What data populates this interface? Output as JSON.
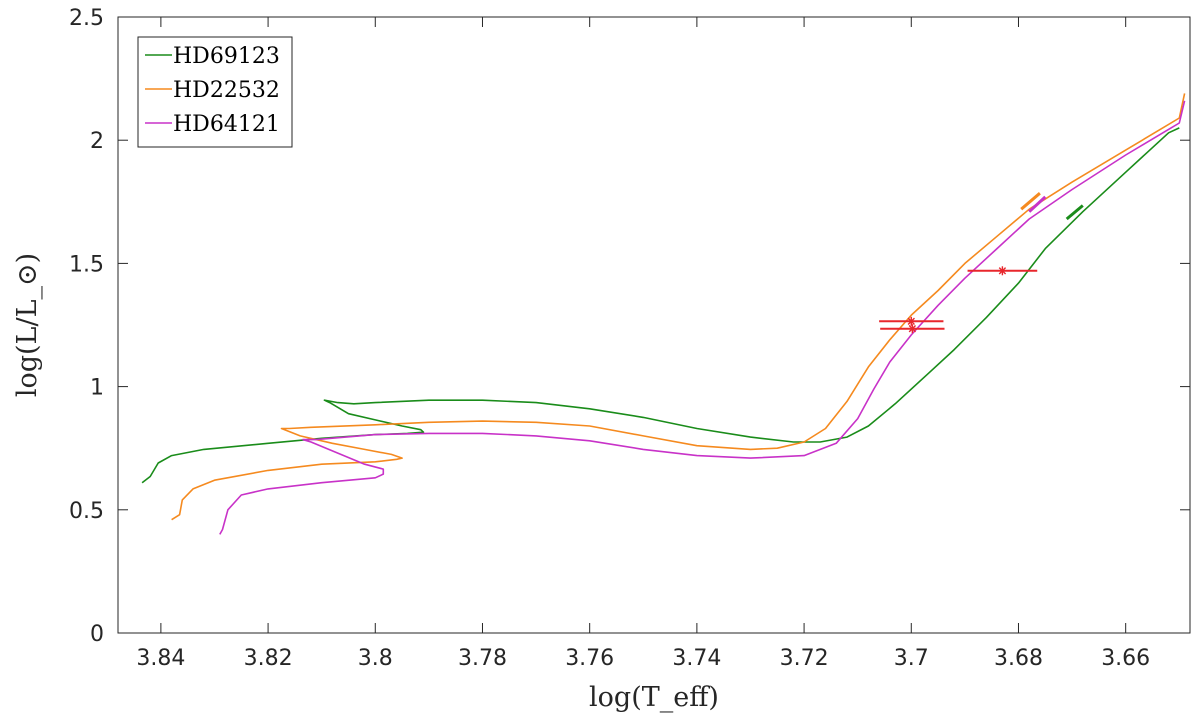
{
  "chart_data": {
    "type": "line",
    "xlabel": "log(T_eff)",
    "ylabel": "log(L/L_⊙)",
    "xlim": [
      3.648,
      3.848
    ],
    "x_reversed": true,
    "ylim": [
      0,
      2.5
    ],
    "xticks": [
      3.84,
      3.82,
      3.8,
      3.78,
      3.76,
      3.74,
      3.72,
      3.7,
      3.68,
      3.66
    ],
    "xtick_labels": [
      "3.84",
      "3.82",
      "3.8",
      "3.78",
      "3.76",
      "3.74",
      "3.72",
      "3.7",
      "3.68",
      "3.66"
    ],
    "yticks": [
      0,
      0.5,
      1,
      1.5,
      2,
      2.5
    ],
    "ytick_labels": [
      "0",
      "0.5",
      "1",
      "1.5",
      "2",
      "2.5"
    ],
    "grid": false,
    "legend_position": "top-left",
    "series": [
      {
        "name": "HD69123",
        "color": "#1a8c1a",
        "points": [
          [
            3.8435,
            0.61
          ],
          [
            3.842,
            0.635
          ],
          [
            3.8405,
            0.69
          ],
          [
            3.838,
            0.72
          ],
          [
            3.832,
            0.745
          ],
          [
            3.82,
            0.77
          ],
          [
            3.81,
            0.79
          ],
          [
            3.8,
            0.805
          ],
          [
            3.794,
            0.81
          ],
          [
            3.791,
            0.815
          ],
          [
            3.7915,
            0.825
          ],
          [
            3.795,
            0.84
          ],
          [
            3.8,
            0.865
          ],
          [
            3.805,
            0.89
          ],
          [
            3.8085,
            0.935
          ],
          [
            3.8095,
            0.945
          ],
          [
            3.807,
            0.935
          ],
          [
            3.804,
            0.93
          ],
          [
            3.8,
            0.935
          ],
          [
            3.79,
            0.945
          ],
          [
            3.78,
            0.945
          ],
          [
            3.77,
            0.935
          ],
          [
            3.76,
            0.91
          ],
          [
            3.75,
            0.875
          ],
          [
            3.74,
            0.83
          ],
          [
            3.73,
            0.795
          ],
          [
            3.722,
            0.775
          ],
          [
            3.717,
            0.775
          ],
          [
            3.712,
            0.795
          ],
          [
            3.708,
            0.84
          ],
          [
            3.703,
            0.93
          ],
          [
            3.697,
            1.05
          ],
          [
            3.692,
            1.15
          ],
          [
            3.686,
            1.28
          ],
          [
            3.68,
            1.42
          ],
          [
            3.675,
            1.56
          ],
          [
            3.668,
            1.71
          ],
          [
            3.66,
            1.87
          ],
          [
            3.652,
            2.03
          ],
          [
            3.65,
            2.05
          ]
        ]
      },
      {
        "name": "HD22532",
        "color": "#f58a1f",
        "points": [
          [
            3.838,
            0.46
          ],
          [
            3.8365,
            0.48
          ],
          [
            3.836,
            0.54
          ],
          [
            3.834,
            0.585
          ],
          [
            3.83,
            0.62
          ],
          [
            3.82,
            0.66
          ],
          [
            3.81,
            0.685
          ],
          [
            3.8,
            0.695
          ],
          [
            3.796,
            0.705
          ],
          [
            3.795,
            0.71
          ],
          [
            3.797,
            0.725
          ],
          [
            3.802,
            0.745
          ],
          [
            3.808,
            0.77
          ],
          [
            3.814,
            0.8
          ],
          [
            3.8175,
            0.83
          ],
          [
            3.816,
            0.83
          ],
          [
            3.812,
            0.835
          ],
          [
            3.8,
            0.845
          ],
          [
            3.79,
            0.855
          ],
          [
            3.78,
            0.86
          ],
          [
            3.77,
            0.855
          ],
          [
            3.76,
            0.84
          ],
          [
            3.75,
            0.8
          ],
          [
            3.74,
            0.76
          ],
          [
            3.73,
            0.745
          ],
          [
            3.725,
            0.75
          ],
          [
            3.72,
            0.775
          ],
          [
            3.716,
            0.83
          ],
          [
            3.712,
            0.94
          ],
          [
            3.708,
            1.08
          ],
          [
            3.704,
            1.19
          ],
          [
            3.7,
            1.29
          ],
          [
            3.695,
            1.39
          ],
          [
            3.69,
            1.5
          ],
          [
            3.684,
            1.61
          ],
          [
            3.678,
            1.72
          ],
          [
            3.67,
            1.83
          ],
          [
            3.66,
            1.96
          ],
          [
            3.65,
            2.09
          ],
          [
            3.649,
            2.19
          ]
        ]
      },
      {
        "name": "HD64121",
        "color": "#c832c8",
        "points": [
          [
            3.829,
            0.4
          ],
          [
            3.8285,
            0.42
          ],
          [
            3.8275,
            0.5
          ],
          [
            3.825,
            0.56
          ],
          [
            3.82,
            0.585
          ],
          [
            3.81,
            0.61
          ],
          [
            3.8,
            0.63
          ],
          [
            3.7985,
            0.645
          ],
          [
            3.7985,
            0.665
          ],
          [
            3.802,
            0.685
          ],
          [
            3.807,
            0.73
          ],
          [
            3.812,
            0.775
          ],
          [
            3.8135,
            0.785
          ],
          [
            3.811,
            0.785
          ],
          [
            3.8,
            0.805
          ],
          [
            3.79,
            0.81
          ],
          [
            3.78,
            0.81
          ],
          [
            3.77,
            0.8
          ],
          [
            3.76,
            0.78
          ],
          [
            3.75,
            0.745
          ],
          [
            3.74,
            0.72
          ],
          [
            3.73,
            0.71
          ],
          [
            3.72,
            0.72
          ],
          [
            3.714,
            0.77
          ],
          [
            3.71,
            0.87
          ],
          [
            3.707,
            0.99
          ],
          [
            3.704,
            1.1
          ],
          [
            3.7,
            1.21
          ],
          [
            3.695,
            1.33
          ],
          [
            3.69,
            1.44
          ],
          [
            3.684,
            1.56
          ],
          [
            3.678,
            1.68
          ],
          [
            3.67,
            1.8
          ],
          [
            3.66,
            1.94
          ],
          [
            3.65,
            2.07
          ],
          [
            3.649,
            2.16
          ]
        ]
      }
    ],
    "highlight_segments": [
      {
        "color": "#f58a1f",
        "points": [
          [
            3.6795,
            1.72
          ],
          [
            3.676,
            1.785
          ]
        ]
      },
      {
        "color": "#c832c8",
        "points": [
          [
            3.678,
            1.71
          ],
          [
            3.675,
            1.77
          ]
        ]
      },
      {
        "color": "#1a8c1a",
        "points": [
          [
            3.671,
            1.68
          ],
          [
            3.668,
            1.735
          ]
        ]
      }
    ],
    "observations": [
      {
        "x": 3.7,
        "y": 1.265,
        "xerr": 0.006,
        "color": "#e8262c"
      },
      {
        "x": 3.6998,
        "y": 1.235,
        "xerr": 0.006,
        "color": "#e8262c"
      },
      {
        "x": 3.683,
        "y": 1.47,
        "xerr": 0.0065,
        "color": "#e8262c"
      }
    ]
  }
}
